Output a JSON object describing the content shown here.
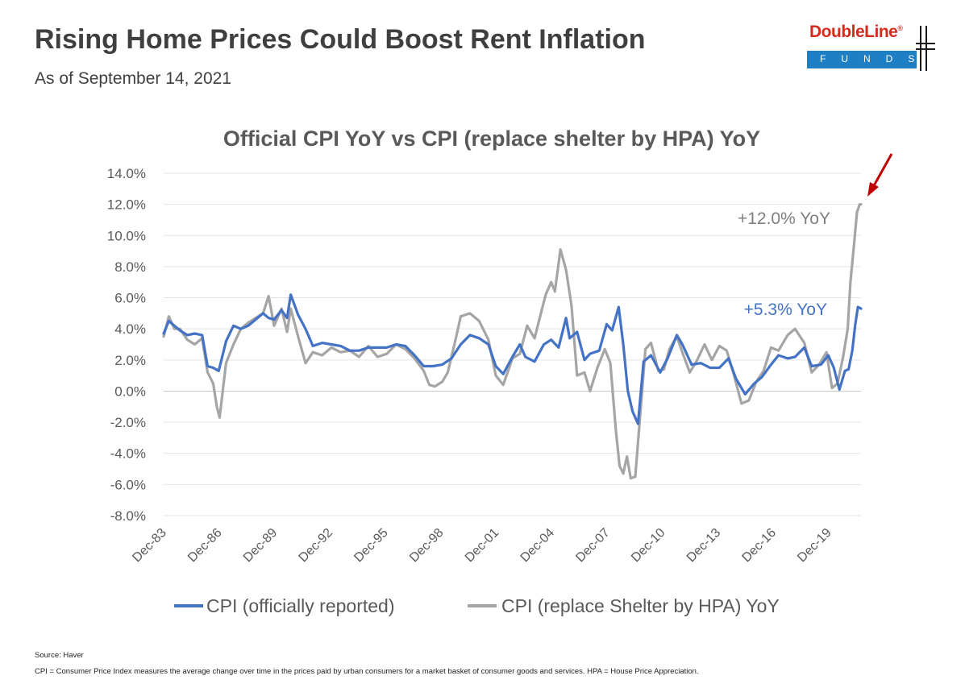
{
  "header": {
    "title": "Rising Home Prices Could Boost Rent Inflation",
    "subtitle": "As of September 14, 2021"
  },
  "logo": {
    "name": "DoubleLine",
    "registered": "®",
    "tagline": "FUNDS",
    "colors": {
      "red": "#d52b1e",
      "blue": "#1e7fc5"
    }
  },
  "footer": {
    "source": "Source: Haver",
    "note": "CPI = Consumer Price Index measures the average change over time in the prices paid by urban consumers for a market basket of consumer goods and services. HPA = House Price Appreciation."
  },
  "chart_data": {
    "type": "line",
    "title": "Official CPI YoY vs CPI (replace shelter by HPA) YoY",
    "xlabel": "",
    "ylabel": "",
    "ylim": [
      -8,
      14
    ],
    "ytick_step": 2,
    "ytick_labels": [
      "-8.0%",
      "-6.0%",
      "-4.0%",
      "-2.0%",
      "0.0%",
      "2.0%",
      "4.0%",
      "6.0%",
      "8.0%",
      "10.0%",
      "12.0%",
      "14.0%"
    ],
    "xlim": [
      1983.92,
      2021.67
    ],
    "x_tick_labels": [
      "Dec-83",
      "Dec-86",
      "Dec-89",
      "Dec-92",
      "Dec-95",
      "Dec-98",
      "Dec-01",
      "Dec-04",
      "Dec-07",
      "Dec-10",
      "Dec-13",
      "Dec-16",
      "Dec-19"
    ],
    "x_tick_values": [
      1983.92,
      1986.92,
      1989.92,
      1992.92,
      1995.92,
      1998.92,
      2001.92,
      2004.92,
      2007.92,
      2010.92,
      2013.92,
      2016.92,
      2019.92
    ],
    "grid": "horizontal",
    "legend_position": "bottom",
    "series": [
      {
        "name": "CPI (officially reported)",
        "color": "#4472c4",
        "x": [
          1983.92,
          1984.2,
          1984.5,
          1984.8,
          1985.2,
          1985.6,
          1986.0,
          1986.3,
          1986.6,
          1986.9,
          1987.3,
          1987.7,
          1988.1,
          1988.5,
          1988.9,
          1989.3,
          1989.6,
          1989.9,
          1990.3,
          1990.6,
          1990.8,
          1991.2,
          1991.6,
          1992.0,
          1992.5,
          1993.0,
          1993.5,
          1994.0,
          1994.5,
          1995.0,
          1995.5,
          1996.0,
          1996.5,
          1997.0,
          1997.5,
          1998.0,
          1998.5,
          1999.0,
          1999.5,
          2000.0,
          2000.5,
          2001.0,
          2001.5,
          2001.9,
          2002.3,
          2002.8,
          2003.2,
          2003.5,
          2004.0,
          2004.5,
          2004.9,
          2005.3,
          2005.7,
          2005.9,
          2006.3,
          2006.7,
          2007.0,
          2007.5,
          2007.9,
          2008.2,
          2008.55,
          2008.8,
          2009.05,
          2009.3,
          2009.6,
          2009.9,
          2010.3,
          2010.8,
          2011.2,
          2011.7,
          2012.0,
          2012.5,
          2013.0,
          2013.5,
          2014.0,
          2014.5,
          2014.9,
          2015.4,
          2015.9,
          2016.3,
          2016.8,
          2017.2,
          2017.7,
          2018.1,
          2018.6,
          2019.0,
          2019.5,
          2019.9,
          2020.2,
          2020.5,
          2020.8,
          2021.0,
          2021.2,
          2021.35,
          2021.5,
          2021.67
        ],
        "y": [
          3.7,
          4.5,
          4.2,
          3.9,
          3.6,
          3.7,
          3.6,
          1.6,
          1.5,
          1.3,
          3.2,
          4.2,
          4.0,
          4.2,
          4.6,
          5.0,
          4.7,
          4.6,
          5.2,
          4.7,
          6.2,
          4.9,
          4.0,
          2.9,
          3.1,
          3.0,
          2.9,
          2.6,
          2.6,
          2.8,
          2.8,
          2.8,
          3.0,
          2.9,
          2.3,
          1.6,
          1.6,
          1.7,
          2.1,
          3.0,
          3.6,
          3.4,
          3.0,
          1.6,
          1.1,
          2.2,
          3.0,
          2.2,
          1.9,
          3.0,
          3.3,
          2.8,
          4.7,
          3.4,
          3.8,
          2.0,
          2.4,
          2.6,
          4.3,
          3.9,
          5.4,
          3.0,
          0.0,
          -1.3,
          -2.1,
          1.9,
          2.3,
          1.2,
          2.1,
          3.6,
          3.0,
          1.7,
          1.8,
          1.5,
          1.5,
          2.1,
          0.8,
          -0.2,
          0.5,
          0.9,
          1.7,
          2.3,
          2.1,
          2.2,
          2.8,
          1.6,
          1.7,
          2.3,
          1.5,
          0.1,
          1.3,
          1.4,
          2.6,
          4.2,
          5.4,
          5.3
        ]
      },
      {
        "name": "CPI (replace Shelter by HPA) YoY",
        "color": "#a5a5a5",
        "x": [
          1983.92,
          1984.2,
          1984.5,
          1984.8,
          1985.2,
          1985.6,
          1986.0,
          1986.3,
          1986.6,
          1986.8,
          1986.95,
          1987.3,
          1987.7,
          1988.1,
          1988.5,
          1988.9,
          1989.3,
          1989.6,
          1989.9,
          1990.3,
          1990.6,
          1990.8,
          1991.2,
          1991.6,
          1992.0,
          1992.5,
          1993.0,
          1993.5,
          1994.0,
          1994.5,
          1995.0,
          1995.5,
          1996.0,
          1996.5,
          1997.0,
          1997.5,
          1998.0,
          1998.3,
          1998.6,
          1999.0,
          1999.3,
          1999.7,
          2000.0,
          2000.5,
          2001.0,
          2001.5,
          2001.9,
          2002.3,
          2002.8,
          2003.2,
          2003.6,
          2004.0,
          2004.3,
          2004.6,
          2004.9,
          2005.1,
          2005.4,
          2005.7,
          2006.0,
          2006.3,
          2006.7,
          2007.0,
          2007.4,
          2007.8,
          2008.1,
          2008.4,
          2008.6,
          2008.8,
          2009.0,
          2009.2,
          2009.45,
          2009.7,
          2010.0,
          2010.3,
          2010.7,
          2011.0,
          2011.3,
          2011.7,
          2012.0,
          2012.4,
          2012.8,
          2013.2,
          2013.6,
          2014.0,
          2014.4,
          2014.8,
          2015.2,
          2015.6,
          2016.0,
          2016.4,
          2016.8,
          2017.2,
          2017.7,
          2018.1,
          2018.6,
          2019.0,
          2019.4,
          2019.8,
          2020.1,
          2020.4,
          2020.7,
          2020.95,
          2021.1,
          2021.3,
          2021.45,
          2021.6,
          2021.67
        ],
        "y": [
          3.5,
          4.8,
          4.0,
          4.0,
          3.3,
          3.0,
          3.4,
          1.2,
          0.5,
          -1.0,
          -1.7,
          1.8,
          3.0,
          4.0,
          4.4,
          4.7,
          5.0,
          6.1,
          4.2,
          5.3,
          3.8,
          5.3,
          3.5,
          1.8,
          2.5,
          2.3,
          2.8,
          2.5,
          2.6,
          2.2,
          2.9,
          2.2,
          2.4,
          3.0,
          2.7,
          2.1,
          1.3,
          0.4,
          0.3,
          0.6,
          1.2,
          3.2,
          4.8,
          5.0,
          4.5,
          3.3,
          1.0,
          0.4,
          2.1,
          2.4,
          4.2,
          3.4,
          4.8,
          6.2,
          7.0,
          6.4,
          9.1,
          7.8,
          5.5,
          1.0,
          1.2,
          0.0,
          1.5,
          2.7,
          1.8,
          -2.5,
          -4.8,
          -5.3,
          -4.2,
          -5.6,
          -5.5,
          -1.8,
          2.7,
          3.1,
          1.3,
          1.4,
          2.7,
          3.5,
          2.5,
          1.2,
          2.0,
          3.0,
          2.0,
          2.9,
          2.6,
          1.0,
          -0.8,
          -0.6,
          0.6,
          1.3,
          2.8,
          2.6,
          3.6,
          4.0,
          3.1,
          1.2,
          1.7,
          2.5,
          0.2,
          0.5,
          2.2,
          4.0,
          7.0,
          9.5,
          11.5,
          12.0,
          12.0
        ]
      }
    ],
    "annotations": [
      {
        "text": "+12.0% YoY",
        "color": "#7f7f7f"
      },
      {
        "text": "+5.3% YoY",
        "color": "#4472c4"
      }
    ],
    "arrow_color": "#c00000"
  }
}
